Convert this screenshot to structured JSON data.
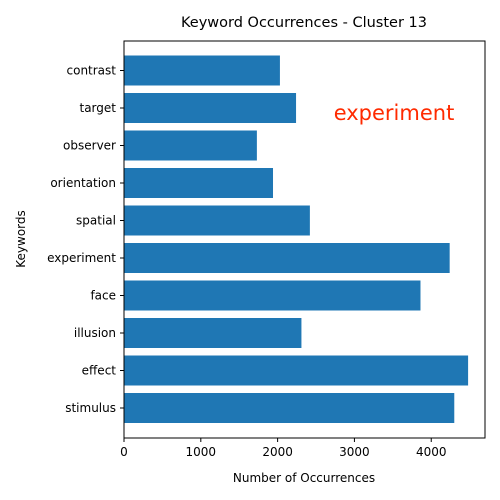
{
  "chart_data": {
    "type": "bar",
    "orientation": "horizontal",
    "title": "Keyword Occurrences - Cluster 13",
    "xlabel": "Number of Occurrences",
    "ylabel": "Keywords",
    "categories": [
      "stimulus",
      "effect",
      "illusion",
      "face",
      "experiment",
      "spatial",
      "orientation",
      "observer",
      "target",
      "contrast"
    ],
    "values": [
      4300,
      4480,
      2310,
      3860,
      4240,
      2420,
      1940,
      1730,
      2240,
      2030
    ],
    "xlim": [
      0,
      4700
    ],
    "xticks": [
      0,
      1000,
      2000,
      3000,
      4000
    ],
    "grid": false,
    "bar_color": "#1f77b4",
    "annotation": {
      "text": "experiment",
      "color": "#ff2a00"
    }
  }
}
